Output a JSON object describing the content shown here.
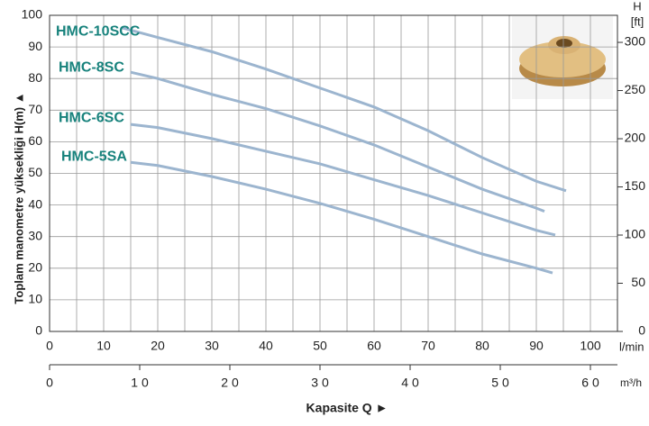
{
  "chart_data": {
    "type": "line",
    "y_label": "Toplam manometre yüksekliği H(m)  ▲",
    "x_label": "l/min",
    "x2_label": "m³/h",
    "bottom_label": "Kapasite Q  ►",
    "y2_unit": "H",
    "y2_label": "[ft]",
    "xlim": [
      0,
      105
    ],
    "xticks": [
      0,
      10,
      20,
      30,
      40,
      50,
      60,
      70,
      80,
      90,
      100
    ],
    "xgrid": [
      5,
      10,
      15,
      20,
      25,
      30,
      35,
      40,
      45,
      50,
      55,
      60,
      65,
      70,
      75,
      80,
      85,
      90,
      95,
      100,
      105
    ],
    "ylim": [
      0,
      100
    ],
    "yticks": [
      0,
      10,
      20,
      30,
      40,
      50,
      60,
      70,
      80,
      90,
      100
    ],
    "y2lim": [
      0,
      328.08
    ],
    "y2ticks": [
      0,
      50,
      100,
      150,
      200,
      250,
      300
    ],
    "x2lim": [
      0,
      6.3
    ],
    "x2ticks": [
      0,
      {
        "value": 1,
        "label": "1 0"
      },
      {
        "value": 2,
        "label": "2 0"
      },
      {
        "value": 3,
        "label": "3 0"
      },
      {
        "value": 4,
        "label": "4 0"
      },
      {
        "value": 5,
        "label": "5 0"
      },
      {
        "value": 6,
        "label": "6 0"
      }
    ],
    "grid": true,
    "line_color": "#9cb5cf",
    "label_color": "#17827c",
    "series": [
      {
        "name": "HMC-10SCC",
        "x": [
          13.5,
          20,
          30,
          40,
          50,
          60,
          70,
          80,
          90,
          95.5
        ],
        "values": [
          96,
          93,
          88.5,
          83,
          77,
          71,
          63.5,
          55,
          47.5,
          44.5
        ]
      },
      {
        "name": "HMC-8SC",
        "x": [
          15,
          20,
          30,
          40,
          50,
          60,
          70,
          80,
          90,
          91.5
        ],
        "values": [
          82,
          80,
          75,
          70.5,
          65,
          59,
          52,
          45,
          39,
          38
        ]
      },
      {
        "name": "HMC-6SC",
        "x": [
          15,
          20,
          30,
          40,
          50,
          60,
          70,
          80,
          90,
          93.5
        ],
        "values": [
          65.5,
          64.5,
          61,
          57,
          53,
          48,
          43,
          37.5,
          32,
          30.5
        ]
      },
      {
        "name": "HMC-5SA",
        "x": [
          15,
          20,
          30,
          40,
          50,
          60,
          70,
          80,
          90,
          93
        ],
        "values": [
          53.5,
          52.5,
          49,
          45,
          40.5,
          35.5,
          30,
          24.5,
          20,
          18.5
        ]
      }
    ]
  }
}
